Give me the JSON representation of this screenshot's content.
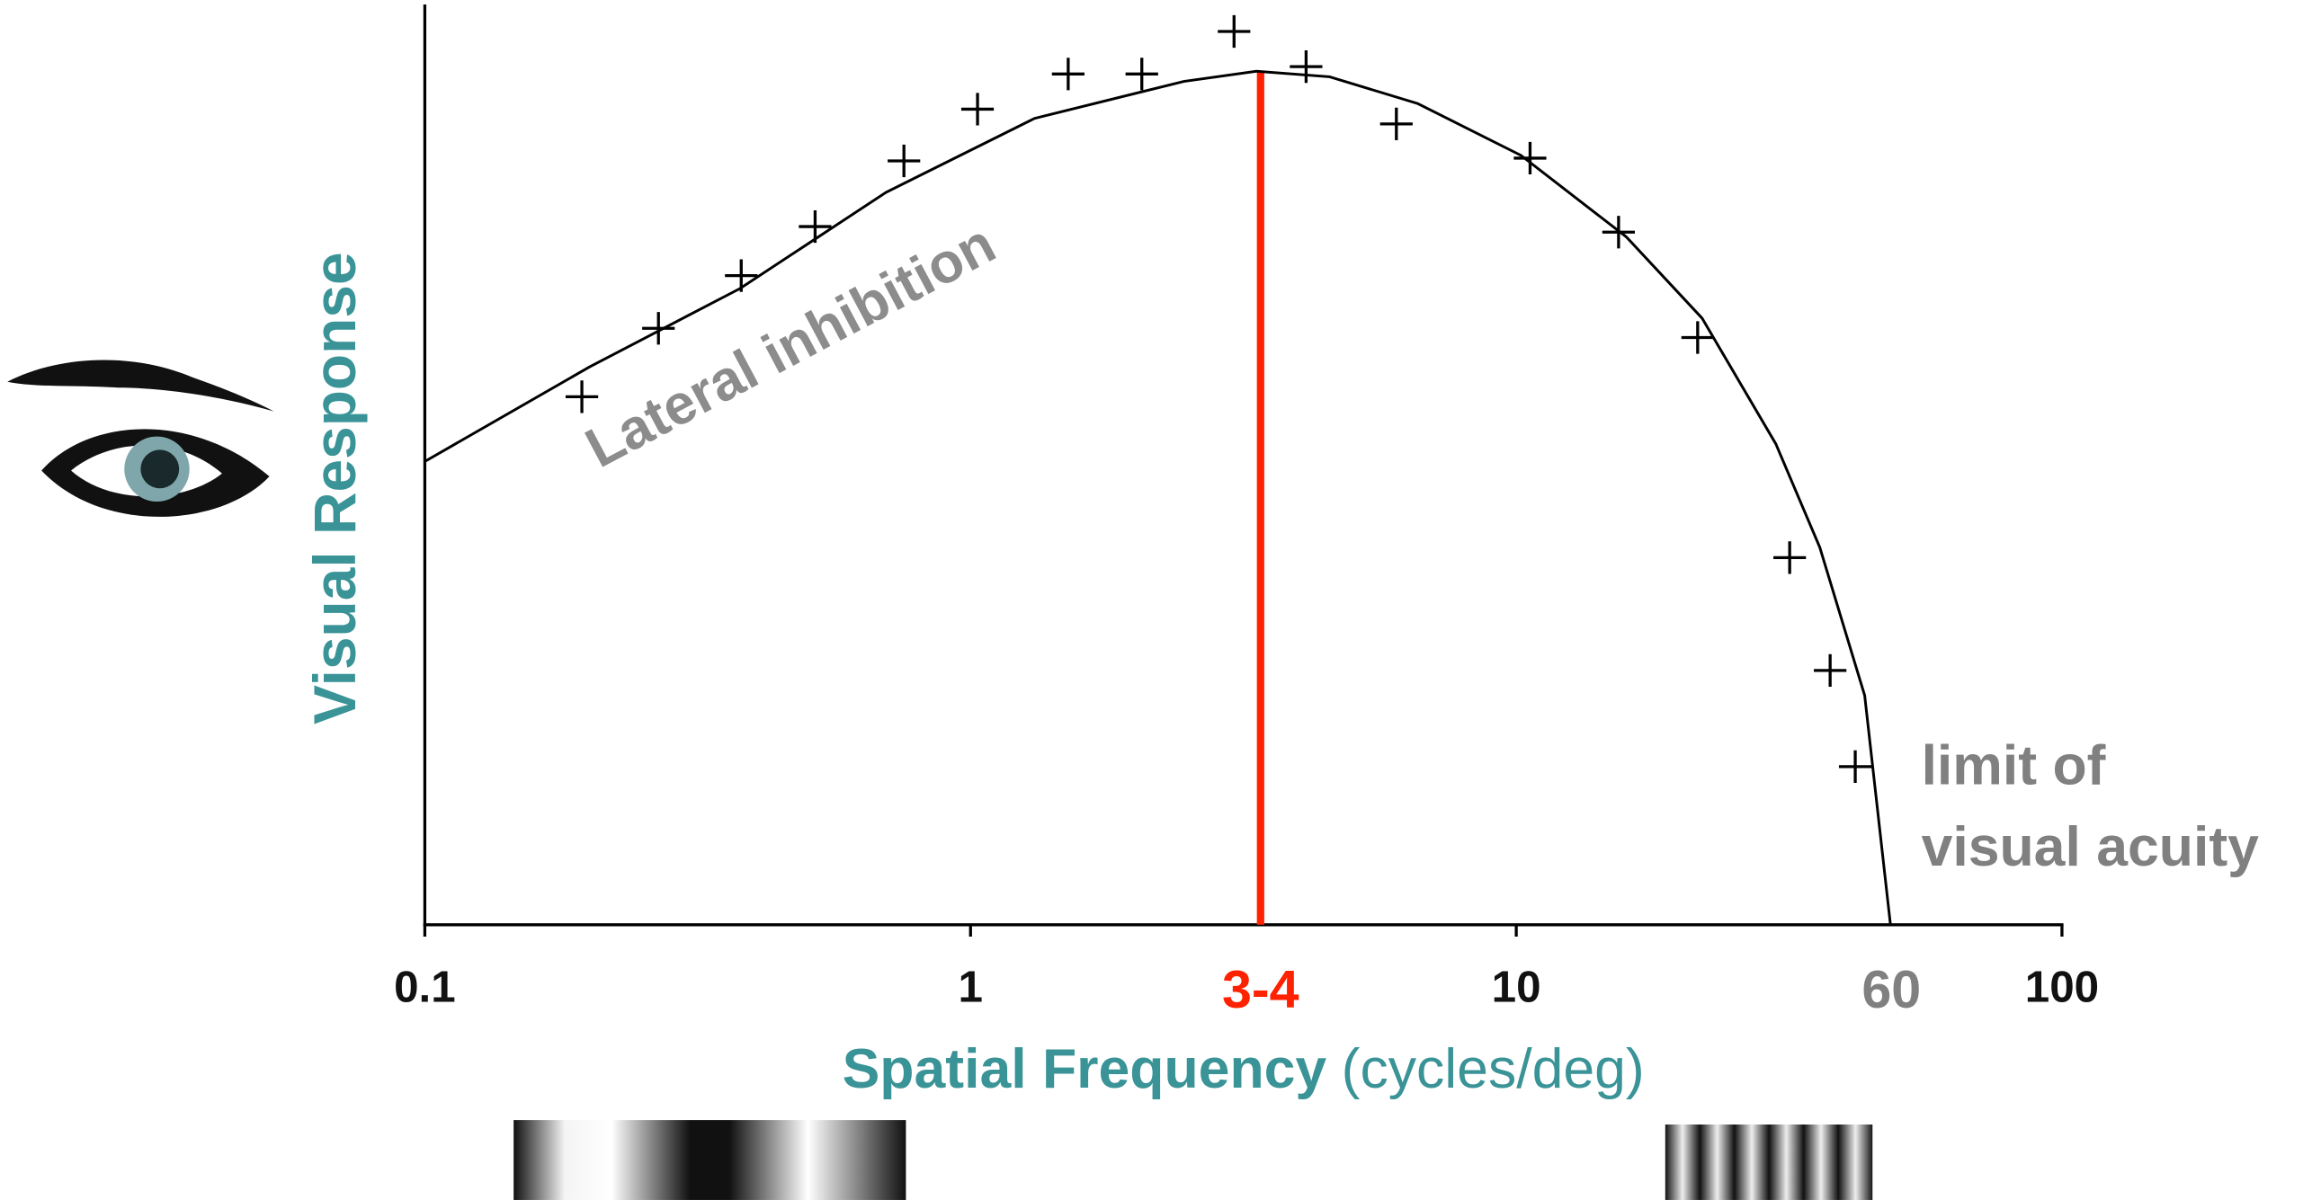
{
  "chart_data": {
    "type": "line",
    "x_label": "Spatial Frequency",
    "x_label_units": "(cycles/deg)",
    "y_label": "Visual Response",
    "xscale": "log",
    "xlim": [
      0.1,
      100
    ],
    "xticks": [
      0.1,
      1,
      10,
      100
    ],
    "ylim": [
      0,
      100
    ],
    "series": [
      {
        "type": "scatter",
        "marker": "+",
        "color": "#000000",
        "x": [
          0.194,
          0.268,
          0.38,
          0.519,
          0.755,
          1.03,
          1.51,
          2.06,
          3.04,
          4.12,
          6.03,
          10.6,
          15.4,
          21.5,
          31.7,
          37.6,
          41.8
        ],
        "values": [
          57.1,
          64.5,
          70.2,
          75.5,
          82.6,
          88.2,
          92,
          92,
          96.6,
          92.8,
          86.6,
          82.9,
          74.9,
          63.5,
          39.7,
          27.5,
          17.1
        ]
      },
      {
        "type": "line",
        "color": "#000000",
        "x": [
          0.1,
          0.2,
          0.378,
          0.7,
          1.31,
          2.46,
          3.34,
          4.55,
          6.6,
          10.2,
          15.9,
          21.9,
          29.9,
          36,
          43.5,
          48.5
        ],
        "values": [
          50.1,
          60.3,
          68.8,
          79.2,
          87.2,
          91.2,
          92.3,
          91.7,
          88.8,
          83.2,
          74.4,
          65.6,
          52,
          40.8,
          24.8,
          0
        ]
      }
    ],
    "peak": {
      "label": "3-4",
      "x": 3.4,
      "y": 92.3,
      "color": "#ff2200"
    },
    "limit": {
      "label": "60",
      "x": 48.7,
      "text": [
        "limit of",
        "visual acuity"
      ],
      "color": "#808080"
    },
    "annotation": {
      "text": "Lateral inhibition",
      "color": "#8c8c8c"
    },
    "label_color": "#3a9396"
  }
}
